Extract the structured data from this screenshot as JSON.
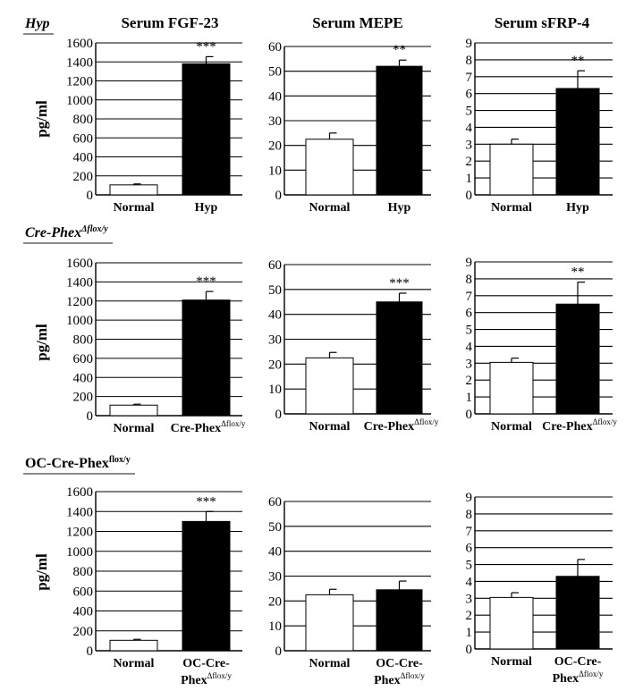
{
  "chart_data": {
    "type": "bar",
    "column_titles": [
      "Serum FGF-23",
      "Serum MEPE",
      "Serum sFRP-4"
    ],
    "ylabel": "pg/ml",
    "grid": true,
    "axes": [
      {
        "ylim": [
          0,
          1600
        ],
        "ticks": [
          0,
          200,
          400,
          600,
          800,
          1000,
          1200,
          1400,
          1600
        ]
      },
      {
        "ylim": [
          0,
          60
        ],
        "ticks": [
          0,
          10,
          20,
          30,
          40,
          50,
          60
        ]
      },
      {
        "ylim": [
          0,
          9
        ],
        "ticks": [
          0,
          1,
          2,
          3,
          4,
          5,
          6,
          7,
          8,
          9
        ]
      }
    ],
    "rows": [
      {
        "label": "Hyp",
        "label_sup": "",
        "categories": [
          {
            "main": "Normal",
            "sup": "",
            "line2": ""
          },
          {
            "main": "Hyp",
            "sup": "",
            "line2": ""
          }
        ],
        "panels": [
          {
            "series": [
              {
                "name": "Normal",
                "value": 105,
                "error": 10,
                "color": "#ffffff"
              },
              {
                "name": "Hyp",
                "value": 1380,
                "error": 75,
                "color": "#000000"
              }
            ],
            "significance": "***"
          },
          {
            "series": [
              {
                "name": "Normal",
                "value": 22.5,
                "error": 2.5,
                "color": "#ffffff"
              },
              {
                "name": "Hyp",
                "value": 52,
                "error": 2.5,
                "color": "#000000"
              }
            ],
            "significance": "**"
          },
          {
            "series": [
              {
                "name": "Normal",
                "value": 3.0,
                "error": 0.3,
                "color": "#ffffff"
              },
              {
                "name": "Hyp",
                "value": 6.3,
                "error": 1.05,
                "color": "#000000"
              }
            ],
            "significance": "**"
          }
        ]
      },
      {
        "label": "Cre-Phex",
        "label_sup": "Δflox/y",
        "categories": [
          {
            "main": "Normal",
            "sup": "",
            "line2": ""
          },
          {
            "main": "Cre-Phex",
            "sup": "Δflox/y",
            "line2": ""
          }
        ],
        "panels": [
          {
            "series": [
              {
                "name": "Normal",
                "value": 110,
                "error": 10,
                "color": "#ffffff"
              },
              {
                "name": "Cre-PhexΔflox/y",
                "value": 1210,
                "error": 90,
                "color": "#000000"
              }
            ],
            "significance": "***"
          },
          {
            "series": [
              {
                "name": "Normal",
                "value": 22.5,
                "error": 2.2,
                "color": "#ffffff"
              },
              {
                "name": "Cre-PhexΔflox/y",
                "value": 45,
                "error": 3.5,
                "color": "#000000"
              }
            ],
            "significance": "***"
          },
          {
            "series": [
              {
                "name": "Normal",
                "value": 3.05,
                "error": 0.25,
                "color": "#ffffff"
              },
              {
                "name": "Cre-PhexΔflox/y",
                "value": 6.5,
                "error": 1.3,
                "color": "#000000"
              }
            ],
            "significance": "**"
          }
        ]
      },
      {
        "label": "OC-Cre-Phex",
        "label_sup": "flox/y",
        "categories": [
          {
            "main": "Normal",
            "sup": "",
            "line2": ""
          },
          {
            "main": "OC-Cre-",
            "sup": "Δflox/y",
            "line2": "Phex"
          }
        ],
        "panels": [
          {
            "series": [
              {
                "name": "Normal",
                "value": 105,
                "error": 10,
                "color": "#ffffff"
              },
              {
                "name": "OC-Cre-PhexΔflox/y",
                "value": 1300,
                "error": 100,
                "color": "#000000"
              }
            ],
            "significance": "***"
          },
          {
            "series": [
              {
                "name": "Normal",
                "value": 22.5,
                "error": 2.2,
                "color": "#ffffff"
              },
              {
                "name": "OC-Cre-PhexΔflox/y",
                "value": 24.5,
                "error": 3.5,
                "color": "#000000"
              }
            ],
            "significance": ""
          },
          {
            "series": [
              {
                "name": "Normal",
                "value": 3.05,
                "error": 0.28,
                "color": "#ffffff"
              },
              {
                "name": "OC-Cre-PhexΔflox/y",
                "value": 4.3,
                "error": 1.0,
                "color": "#000000"
              }
            ],
            "significance": ""
          }
        ]
      }
    ]
  }
}
